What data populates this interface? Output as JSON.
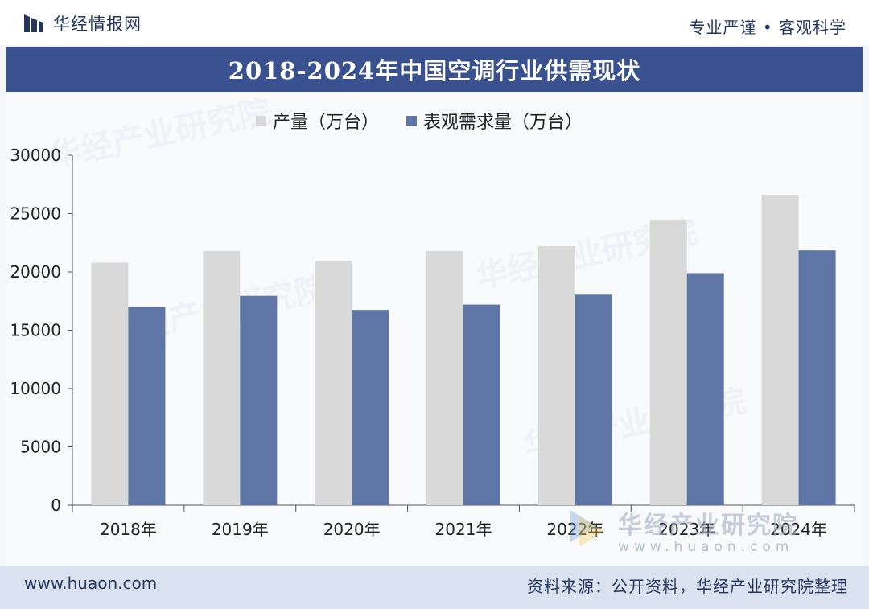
{
  "header": {
    "logo_text": "华经情报网",
    "slogan": "专业严谨 • 客观科学"
  },
  "title": "2018-2024年中国空调行业供需现状",
  "legend": {
    "production": "产量（万台）",
    "demand": "表观需求量（万台）"
  },
  "watermark": {
    "brand_cn": "华经产业研究院",
    "brand_url": "www.huaon.com"
  },
  "footer": {
    "url": "www.huaon.com",
    "source": "资料来源：公开资料，华经产业研究院整理"
  },
  "colors": {
    "production": "#d9d9d9",
    "demand": "#5f75a5",
    "title_bg": "#3a5190",
    "axis": "#555555"
  },
  "chart_data": {
    "type": "bar",
    "categories": [
      "2018年",
      "2019年",
      "2020年",
      "2021年",
      "2022年",
      "2023年",
      "2024年"
    ],
    "series": [
      {
        "name": "产量（万台）",
        "values": [
          20800,
          21800,
          20950,
          21800,
          22200,
          24400,
          26600
        ]
      },
      {
        "name": "表观需求量（万台）",
        "values": [
          17000,
          17950,
          16750,
          17200,
          18050,
          19900,
          21850
        ]
      }
    ],
    "yticks": [
      0,
      5000,
      10000,
      15000,
      20000,
      25000,
      30000
    ],
    "ylim": [
      0,
      30000
    ],
    "grid": false,
    "legend_position": "top"
  }
}
